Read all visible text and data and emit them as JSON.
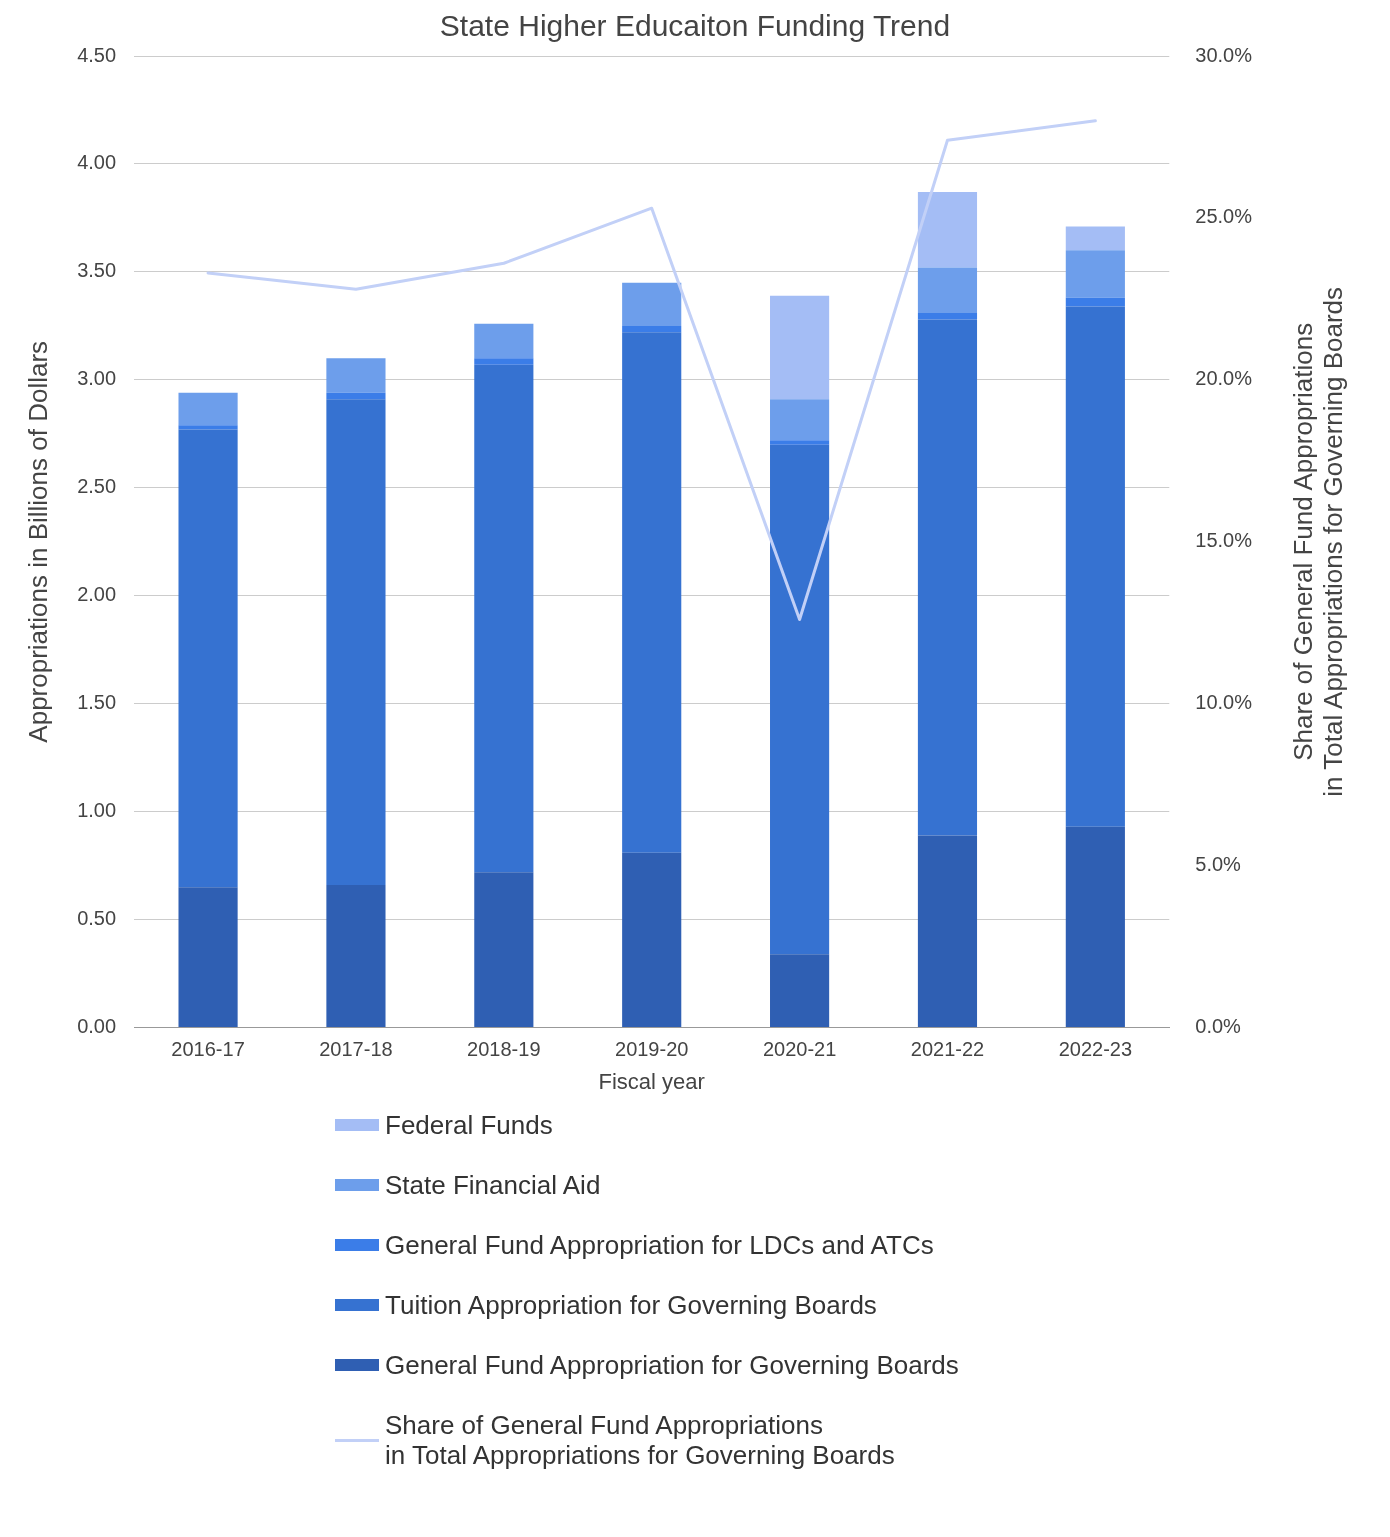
{
  "chart_data": {
    "type": "bar",
    "title": "State Higher Educaiton Funding Trend",
    "xlabel": "Fiscal year",
    "ylabel": "Appropriations in Billions of Dollars",
    "y2label": "Share of General Fund Appropriations\nin Total Appropriations for Governing Boards",
    "categories": [
      "2016-17",
      "2017-18",
      "2018-19",
      "2019-20",
      "2020-21",
      "2021-22",
      "2022-23"
    ],
    "stacked": true,
    "grid": "y",
    "legend": "bottom",
    "ylim": [
      0,
      4.5
    ],
    "yticks": [
      {
        "value": 0,
        "label": "0.00"
      },
      {
        "value": 0.5,
        "label": "0.50"
      },
      {
        "value": 1,
        "label": "1.00"
      },
      {
        "value": 1.5,
        "label": "1.50"
      },
      {
        "value": 2,
        "label": "2.00"
      },
      {
        "value": 2.5,
        "label": "2.50"
      },
      {
        "value": 3,
        "label": "3.00"
      },
      {
        "value": 3.5,
        "label": "3.50"
      },
      {
        "value": 4,
        "label": "4.00"
      },
      {
        "value": 4.5,
        "label": "4.50"
      }
    ],
    "y2lim": [
      0,
      30
    ],
    "y2ticks": [
      {
        "value": 0,
        "label": "0.0%"
      },
      {
        "value": 5,
        "label": "5.0%"
      },
      {
        "value": 10,
        "label": "10.0%"
      },
      {
        "value": 15,
        "label": "15.0%"
      },
      {
        "value": 20,
        "label": "20.0%"
      },
      {
        "value": 25,
        "label": "25.0%"
      },
      {
        "value": 30,
        "label": "30.0%"
      }
    ],
    "series": [
      {
        "name": "General Fund Appropriation for Governing Boards",
        "color": "#2f5fb3",
        "values": [
          0.65,
          0.66,
          0.72,
          0.81,
          0.34,
          0.89,
          0.93
        ]
      },
      {
        "name": "Tuition Appropriation for Governing Boards",
        "color": "#3672d1",
        "values": [
          2.12,
          2.25,
          2.35,
          2.41,
          2.36,
          2.39,
          2.41
        ]
      },
      {
        "name": "General Fund Appropriation for LDCs and ATCs",
        "color": "#3b7de8",
        "values": [
          0.02,
          0.03,
          0.03,
          0.03,
          0.02,
          0.03,
          0.04
        ]
      },
      {
        "name": "State Financial Aid",
        "color": "#6d9eeb",
        "values": [
          0.15,
          0.16,
          0.16,
          0.2,
          0.19,
          0.21,
          0.22
        ]
      },
      {
        "name": "Federal Funds",
        "color": "#a4bdf5",
        "values": [
          0,
          0,
          0,
          0,
          0.48,
          0.35,
          0.11
        ]
      },
      {
        "name": "Share of General Fund Appropriations\nin Total Appropriations for Governing Boards",
        "type": "line",
        "axis": "y2",
        "color": "#c2d0f7",
        "values": [
          23.3,
          22.8,
          23.6,
          25.3,
          12.6,
          27.4,
          28.0
        ]
      }
    ]
  }
}
